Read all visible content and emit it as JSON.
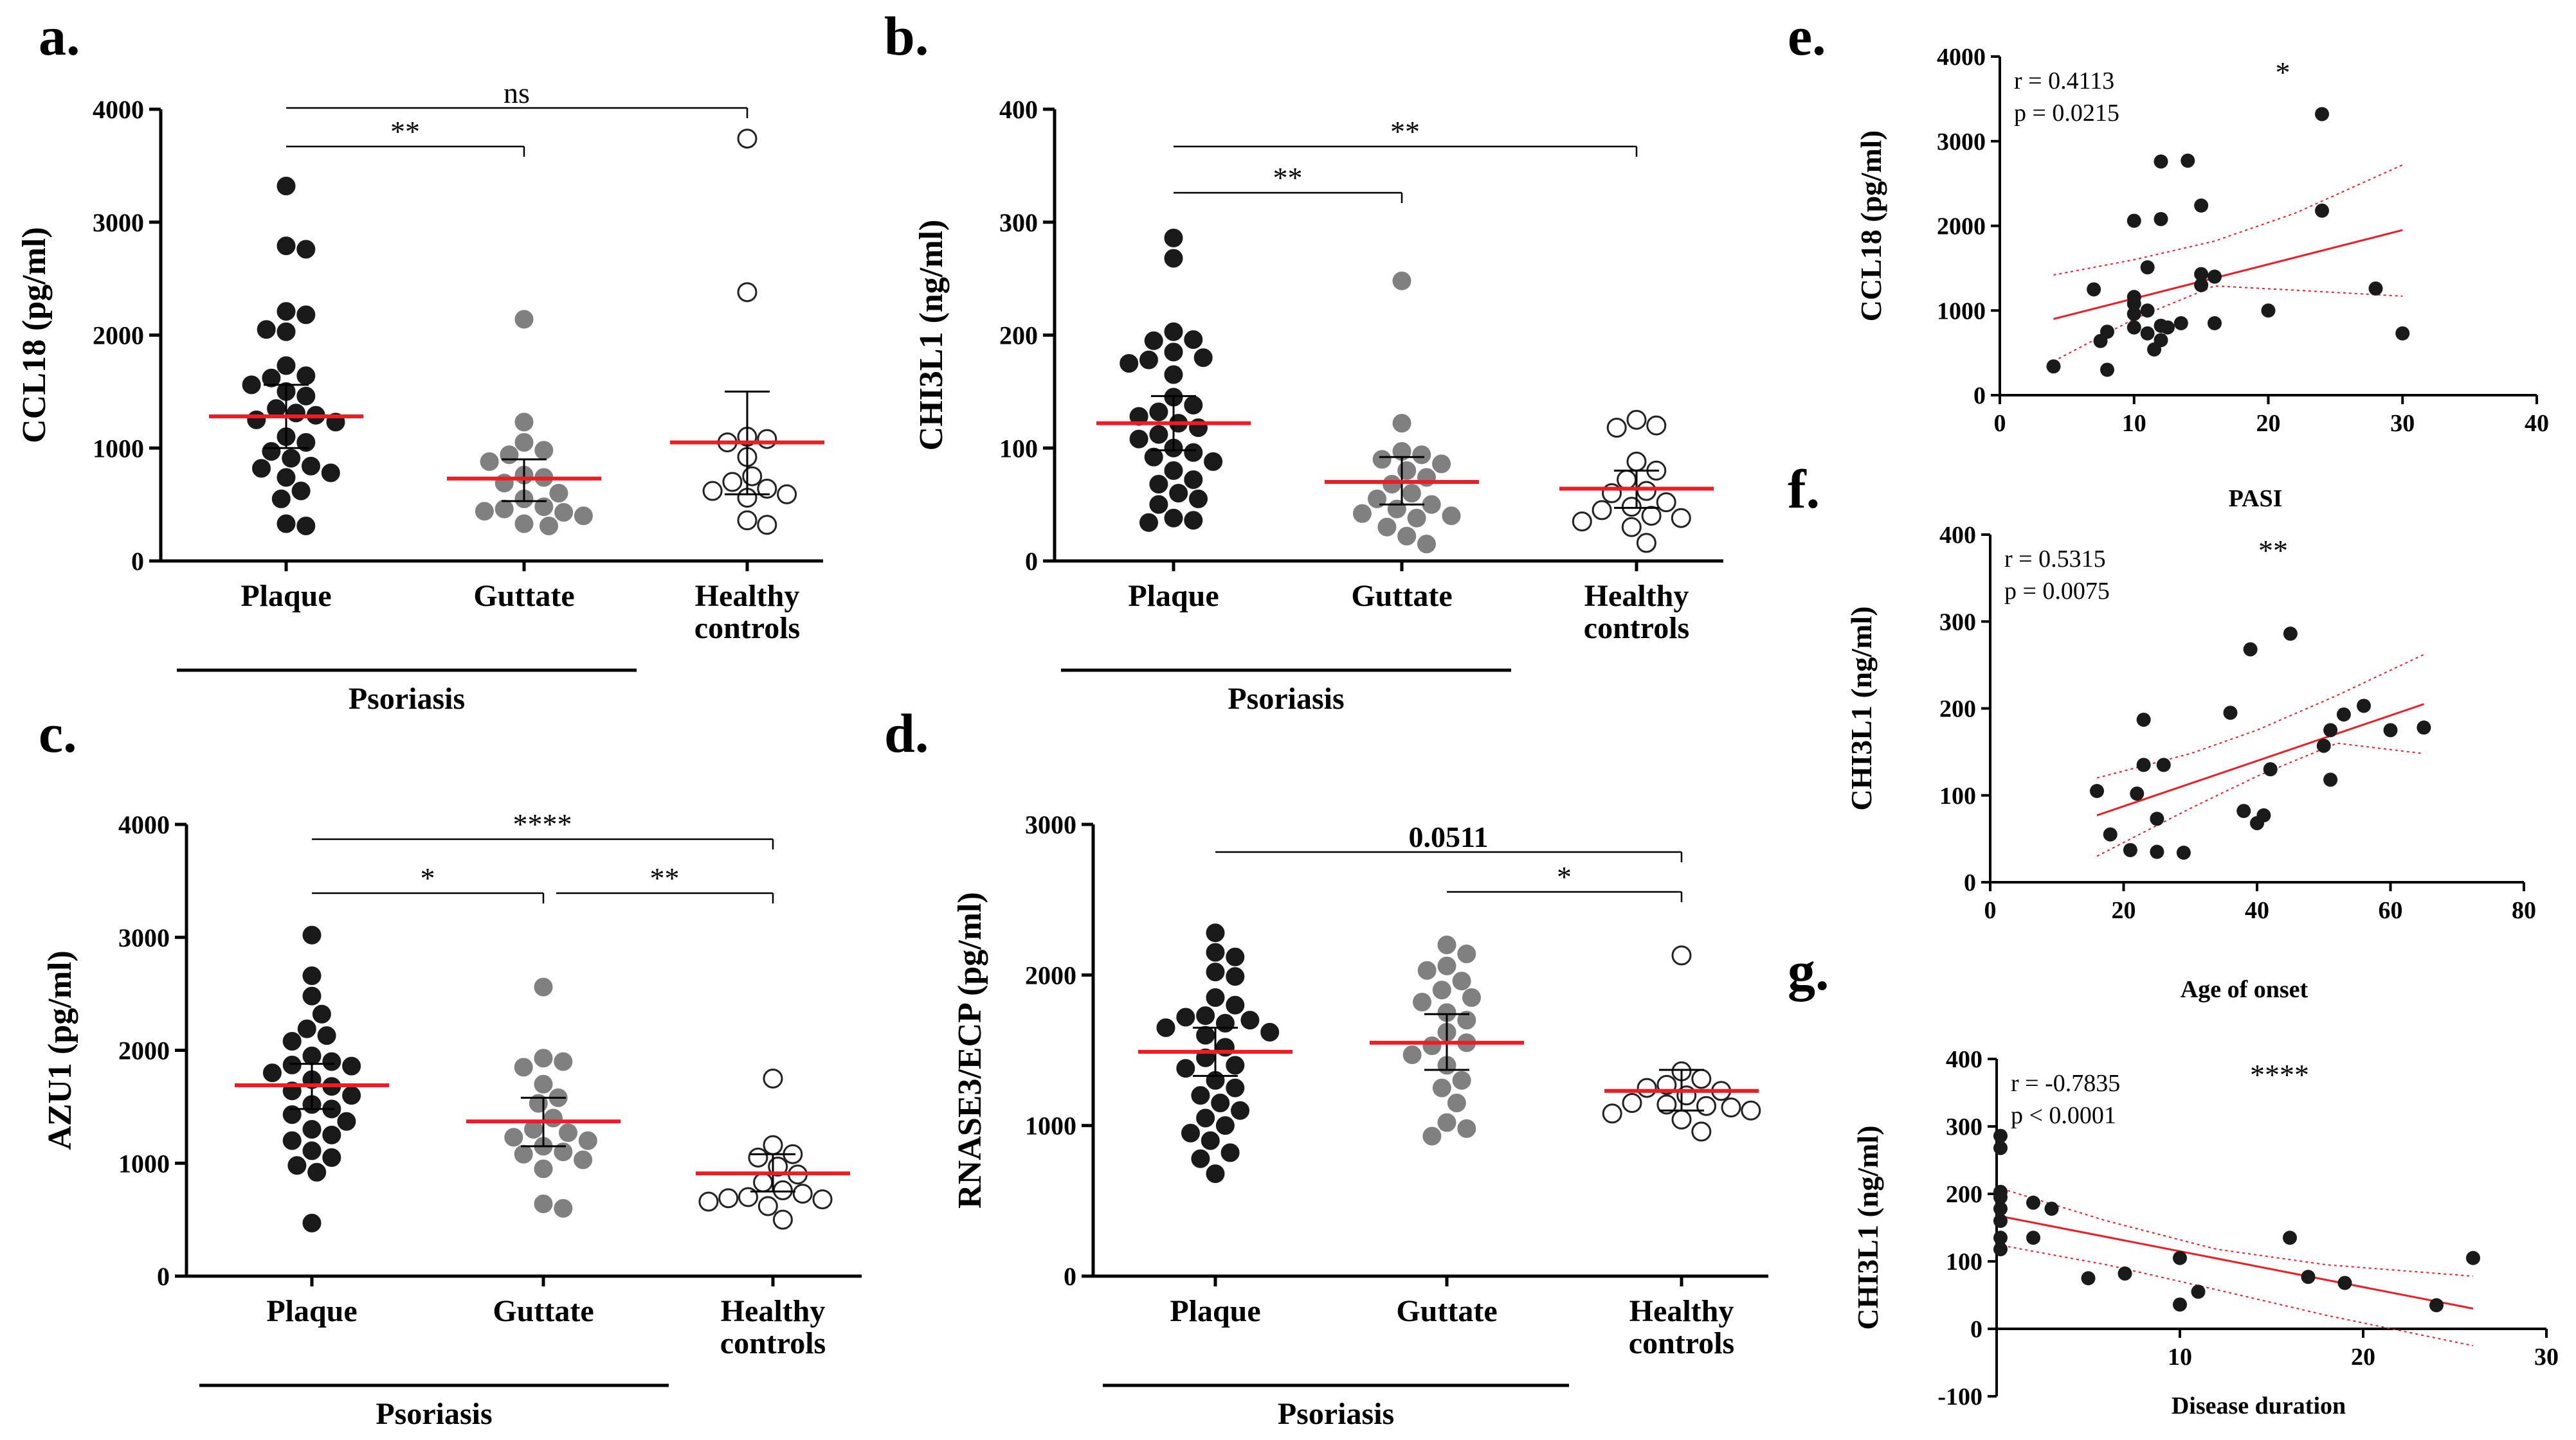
{
  "colors": {
    "black": "#1a1a1a",
    "gray": "#808080",
    "open_fill": "#ffffff",
    "median": "#ee1c24",
    "fit": "#ee1c24"
  },
  "chart_data": [
    {
      "panel": "a.",
      "type": "scatter",
      "ylabel": "CCL18 (pg/ml)",
      "ylim": [
        0,
        4000
      ],
      "yticks": [
        "0",
        "1000",
        "2000",
        "3000",
        "4000"
      ],
      "groups": [
        {
          "label": "Plaque",
          "style": "black",
          "median": 1280,
          "ci": [
            1000,
            1560
          ],
          "values": [
            3320,
            2790,
            2760,
            2210,
            2180,
            2030,
            2050,
            1730,
            1640,
            1620,
            1560,
            1500,
            1460,
            1350,
            1310,
            1290,
            1250,
            1230,
            1100,
            1050,
            970,
            910,
            840,
            820,
            780,
            740,
            620,
            550,
            330,
            310
          ]
        },
        {
          "label": "Guttate",
          "style": "gray",
          "median": 730,
          "ci": [
            530,
            900
          ],
          "values": [
            2140,
            1230,
            1050,
            980,
            940,
            880,
            760,
            740,
            690,
            600,
            550,
            480,
            460,
            440,
            430,
            400,
            330,
            310
          ]
        },
        {
          "label": "Healthy\ncontrols",
          "style": "open",
          "median": 1050,
          "ci": [
            590,
            1500
          ],
          "values": [
            3740,
            2380,
            1100,
            1080,
            1050,
            920,
            750,
            700,
            640,
            620,
            590,
            560,
            360,
            320
          ]
        }
      ],
      "group_line": "Psoriasis",
      "comparisons": [
        {
          "text": "**",
          "from": 0,
          "to": 1
        },
        {
          "text": "ns",
          "from": 0,
          "to": 2
        }
      ]
    },
    {
      "panel": "b.",
      "type": "scatter",
      "ylabel": "CHI3L1 (ng/ml)",
      "ylim": [
        0,
        400
      ],
      "yticks": [
        "0",
        "100",
        "200",
        "300",
        "400"
      ],
      "groups": [
        {
          "label": "Plaque",
          "style": "black",
          "median": 122,
          "ci": [
            98,
            146
          ],
          "values": [
            286,
            268,
            203,
            196,
            195,
            185,
            180,
            178,
            175,
            165,
            145,
            138,
            132,
            128,
            122,
            118,
            112,
            108,
            100,
            96,
            92,
            88,
            80,
            72,
            68,
            60,
            55,
            50,
            38,
            36,
            34
          ]
        },
        {
          "label": "Guttate",
          "style": "gray",
          "median": 70,
          "ci": [
            50,
            92
          ],
          "values": [
            248,
            122,
            97,
            94,
            90,
            86,
            80,
            74,
            68,
            60,
            55,
            50,
            46,
            42,
            40,
            38,
            30,
            22,
            15
          ]
        },
        {
          "label": "Healthy\ncontrols",
          "style": "open",
          "median": 64,
          "ci": [
            47,
            80
          ],
          "values": [
            125,
            120,
            118,
            88,
            80,
            72,
            62,
            60,
            52,
            48,
            45,
            40,
            38,
            35,
            30,
            16
          ]
        }
      ],
      "group_line": "Psoriasis",
      "comparisons": [
        {
          "text": "**",
          "from": 0,
          "to": 1
        },
        {
          "text": "**",
          "from": 0,
          "to": 2
        }
      ]
    },
    {
      "panel": "c.",
      "type": "scatter",
      "ylabel": "AZU1 (pg/ml)",
      "ylim": [
        0,
        4000
      ],
      "yticks": [
        "0",
        "1000",
        "2000",
        "3000",
        "4000"
      ],
      "groups": [
        {
          "label": "Plaque",
          "style": "black",
          "median": 1690,
          "ci": [
            1480,
            1880
          ],
          "values": [
            3020,
            2660,
            2480,
            2320,
            2190,
            2130,
            2080,
            1950,
            1900,
            1870,
            1860,
            1800,
            1740,
            1680,
            1640,
            1600,
            1520,
            1480,
            1430,
            1370,
            1300,
            1250,
            1200,
            1110,
            1050,
            980,
            920,
            470
          ]
        },
        {
          "label": "Guttate",
          "style": "gray",
          "median": 1370,
          "ci": [
            1150,
            1580
          ],
          "values": [
            2560,
            1930,
            1900,
            1850,
            1700,
            1580,
            1530,
            1400,
            1300,
            1270,
            1230,
            1200,
            1150,
            1100,
            1080,
            1030,
            950,
            640,
            600
          ]
        },
        {
          "label": "Healthy\ncontrols",
          "style": "open",
          "median": 910,
          "ci": [
            750,
            1080
          ],
          "values": [
            1750,
            1160,
            1080,
            1050,
            970,
            900,
            830,
            760,
            730,
            700,
            690,
            680,
            660,
            620,
            500
          ]
        }
      ],
      "group_line": "Psoriasis",
      "comparisons": [
        {
          "text": "*",
          "from": 0,
          "to": 1
        },
        {
          "text": "****",
          "from": 0,
          "to": 2
        },
        {
          "text": "**",
          "from": 1,
          "to": 2
        }
      ]
    },
    {
      "panel": "d.",
      "type": "scatter",
      "ylabel": "RNASE3/ECP (pg/ml)",
      "ylim": [
        0,
        3000
      ],
      "yticks": [
        "0",
        "1000",
        "2000",
        "3000"
      ],
      "groups": [
        {
          "label": "Plaque",
          "style": "black",
          "median": 1490,
          "ci": [
            1330,
            1650
          ],
          "values": [
            2280,
            2150,
            2120,
            2020,
            1990,
            1850,
            1800,
            1730,
            1720,
            1700,
            1680,
            1650,
            1620,
            1600,
            1520,
            1450,
            1400,
            1380,
            1300,
            1250,
            1200,
            1150,
            1100,
            1050,
            1000,
            950,
            900,
            820,
            780,
            680
          ]
        },
        {
          "label": "Guttate",
          "style": "gray",
          "median": 1550,
          "ci": [
            1370,
            1740
          ],
          "values": [
            2200,
            2140,
            2060,
            2030,
            1960,
            1900,
            1850,
            1820,
            1750,
            1700,
            1620,
            1550,
            1530,
            1470,
            1400,
            1300,
            1250,
            1150,
            1020,
            980,
            930
          ]
        },
        {
          "label": "Healthy\ncontrols",
          "style": "open",
          "median": 1230,
          "ci": [
            1100,
            1370
          ],
          "values": [
            2130,
            1360,
            1310,
            1270,
            1250,
            1230,
            1200,
            1150,
            1140,
            1130,
            1120,
            1100,
            1080,
            1040,
            960
          ]
        }
      ],
      "group_line": "Psoriasis",
      "comparisons": [
        {
          "text": "*",
          "from": 1,
          "to": 2
        },
        {
          "text": "0.0511",
          "from": 0,
          "to": 2,
          "bold": true
        }
      ]
    },
    {
      "panel": "e.",
      "type": "scatter",
      "xlabel": "PASI",
      "ylabel": "CCL18 (pg/ml)",
      "xlim": [
        0,
        40
      ],
      "ylim": [
        0,
        4000
      ],
      "xticks": [
        "0",
        "10",
        "20",
        "30",
        "40"
      ],
      "yticks": [
        "0",
        "1000",
        "2000",
        "3000",
        "4000"
      ],
      "r_text": "r = 0.4113",
      "p_text": "p = 0.0215",
      "sig": "*",
      "fit": {
        "x1": 4,
        "y1": 900,
        "x2": 30,
        "y2": 1950
      },
      "band_upper": [
        [
          4,
          1420
        ],
        [
          10,
          1600
        ],
        [
          16,
          1820
        ],
        [
          22,
          2150
        ],
        [
          30,
          2720
        ]
      ],
      "band_lower": [
        [
          4,
          400
        ],
        [
          10,
          900
        ],
        [
          16,
          1290
        ],
        [
          22,
          1240
        ],
        [
          30,
          1170
        ]
      ],
      "points": [
        [
          4,
          340
        ],
        [
          7,
          1250
        ],
        [
          7.5,
          640
        ],
        [
          8,
          750
        ],
        [
          8,
          300
        ],
        [
          10,
          2060
        ],
        [
          10,
          1160
        ],
        [
          10,
          1080
        ],
        [
          10,
          960
        ],
        [
          10,
          800
        ],
        [
          11,
          1510
        ],
        [
          11,
          1000
        ],
        [
          11,
          730
        ],
        [
          11.5,
          540
        ],
        [
          12,
          2760
        ],
        [
          12,
          2080
        ],
        [
          12,
          820
        ],
        [
          12,
          650
        ],
        [
          12.5,
          800
        ],
        [
          13.5,
          850
        ],
        [
          14,
          2770
        ],
        [
          15,
          1430
        ],
        [
          15,
          1300
        ],
        [
          15,
          2240
        ],
        [
          16,
          1400
        ],
        [
          16,
          850
        ],
        [
          20,
          1000
        ],
        [
          24,
          3320
        ],
        [
          24,
          2180
        ],
        [
          28,
          1260
        ],
        [
          30,
          730
        ]
      ]
    },
    {
      "panel": "f.",
      "type": "scatter",
      "xlabel": "Age of onset",
      "ylabel": "CHI3L1 (ng/ml)",
      "xlim": [
        0,
        80
      ],
      "ylim": [
        0,
        400
      ],
      "xticks": [
        "0",
        "20",
        "40",
        "60",
        "80"
      ],
      "yticks": [
        "0",
        "100",
        "200",
        "300",
        "400"
      ],
      "r_text": "r = 0.5315",
      "p_text": "p = 0.0075",
      "sig": "**",
      "fit": {
        "x1": 16,
        "y1": 77,
        "x2": 65,
        "y2": 205
      },
      "band_upper": [
        [
          16,
          120
        ],
        [
          30,
          148
        ],
        [
          40,
          175
        ],
        [
          52,
          215
        ],
        [
          65,
          262
        ]
      ],
      "band_lower": [
        [
          16,
          30
        ],
        [
          30,
          85
        ],
        [
          40,
          122
        ],
        [
          52,
          160
        ],
        [
          65,
          148
        ]
      ],
      "points": [
        [
          16,
          105
        ],
        [
          18,
          55
        ],
        [
          21,
          37
        ],
        [
          22,
          102
        ],
        [
          23,
          135
        ],
        [
          23,
          187
        ],
        [
          25,
          35
        ],
        [
          25,
          73
        ],
        [
          26,
          135
        ],
        [
          29,
          34
        ],
        [
          36,
          195
        ],
        [
          38,
          82
        ],
        [
          39,
          268
        ],
        [
          40,
          68
        ],
        [
          41,
          77
        ],
        [
          42,
          130
        ],
        [
          45,
          286
        ],
        [
          50,
          157
        ],
        [
          51,
          118
        ],
        [
          51,
          175
        ],
        [
          53,
          193
        ],
        [
          56,
          203
        ],
        [
          60,
          175
        ],
        [
          65,
          178
        ]
      ]
    },
    {
      "panel": "g.",
      "type": "scatter",
      "xlabel": "Disease duration",
      "ylabel": "CHI3L1 (ng/ml)",
      "xlim": [
        0,
        30
      ],
      "ylim": [
        -100,
        400
      ],
      "xticks": [
        "10",
        "20",
        "30"
      ],
      "yticks": [
        "-100",
        "0",
        "100",
        "200",
        "300",
        "400"
      ],
      "r_text": "r = -0.7835",
      "p_text": "p < 0.0001",
      "sig": "****",
      "fit": {
        "x1": 0,
        "y1": 168,
        "x2": 26,
        "y2": 30
      },
      "band_upper": [
        [
          0,
          210
        ],
        [
          6,
          160
        ],
        [
          12,
          118
        ],
        [
          18,
          95
        ],
        [
          26,
          78
        ]
      ],
      "band_lower": [
        [
          0,
          125
        ],
        [
          6,
          95
        ],
        [
          12,
          58
        ],
        [
          18,
          20
        ],
        [
          26,
          -25
        ]
      ],
      "points": [
        [
          0,
          286
        ],
        [
          0,
          268
        ],
        [
          0,
          203
        ],
        [
          0,
          195
        ],
        [
          0,
          178
        ],
        [
          0,
          160
        ],
        [
          0,
          135
        ],
        [
          0,
          118
        ],
        [
          2,
          187
        ],
        [
          2,
          135
        ],
        [
          3,
          178
        ],
        [
          5,
          75
        ],
        [
          7,
          82
        ],
        [
          10,
          105
        ],
        [
          10,
          36
        ],
        [
          11,
          55
        ],
        [
          16,
          135
        ],
        [
          17,
          77
        ],
        [
          19,
          68
        ],
        [
          24,
          35
        ],
        [
          26,
          105
        ]
      ]
    }
  ]
}
